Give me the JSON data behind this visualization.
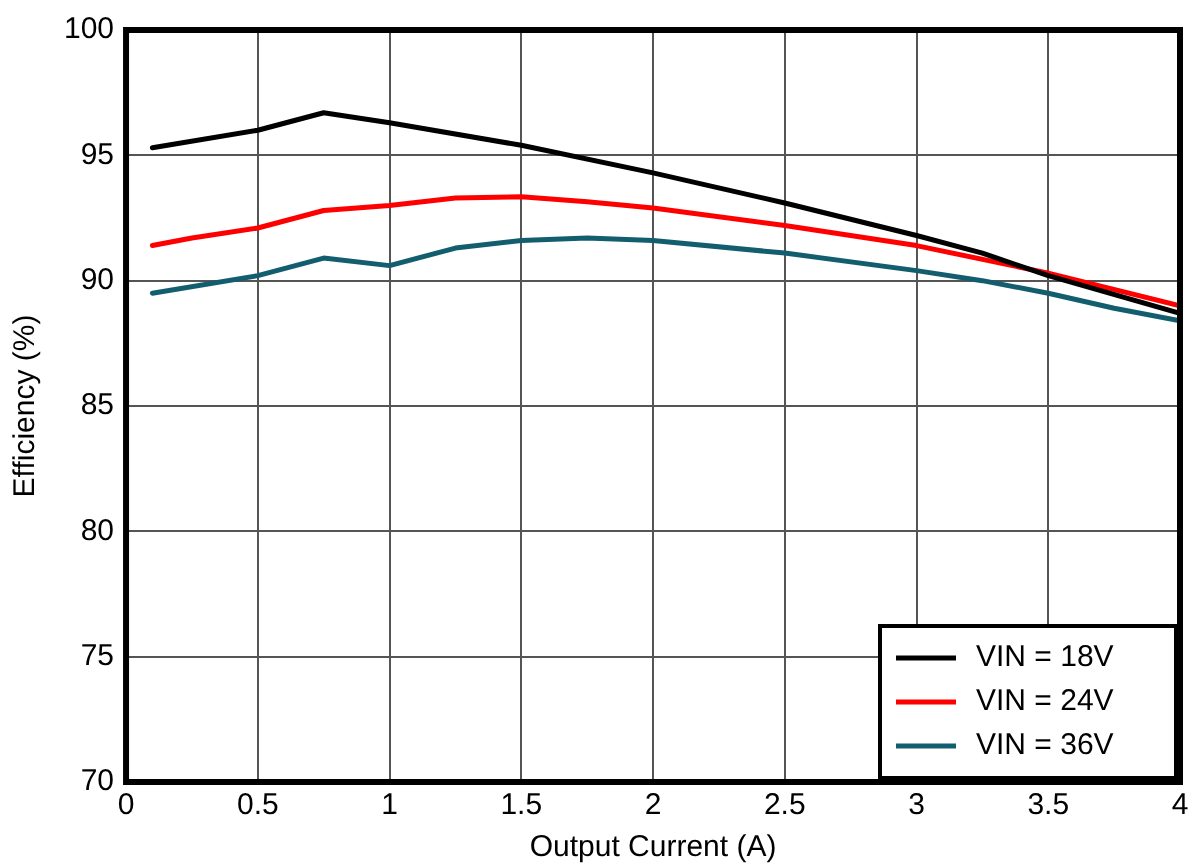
{
  "chart_data": {
    "type": "line",
    "xlabel": "Output Current (A)",
    "ylabel": "Efficiency (%)",
    "xlim": [
      0,
      4
    ],
    "xticks": [
      0,
      0.5,
      1,
      1.5,
      2,
      2.5,
      3,
      3.5,
      4
    ],
    "ylim": [
      70,
      100
    ],
    "yticks": [
      70,
      75,
      80,
      85,
      90,
      95,
      100
    ],
    "grid": true,
    "legend": "bottom right",
    "marker": "none",
    "line_style": "solid",
    "series": [
      {
        "name": "VIN = 18V",
        "color": "#000000",
        "x": [
          0.1,
          0.5,
          0.75,
          1,
          1.5,
          2,
          2.5,
          3,
          3.25,
          3.5,
          4
        ],
        "values": [
          95.3,
          96.0,
          96.7,
          96.3,
          95.4,
          94.3,
          93.1,
          91.8,
          91.1,
          90.2,
          88.7
        ]
      },
      {
        "name": "VIN = 24V",
        "color": "#ff0000",
        "x": [
          0.1,
          0.25,
          0.5,
          0.75,
          1,
          1.25,
          1.5,
          1.75,
          2,
          2.5,
          3,
          3.5,
          4
        ],
        "values": [
          91.4,
          91.7,
          92.1,
          92.8,
          93.0,
          93.3,
          93.35,
          93.15,
          92.9,
          92.2,
          91.4,
          90.3,
          89.0
        ]
      },
      {
        "name": "VIN = 36V",
        "color": "#135e6e",
        "x": [
          0.1,
          0.5,
          0.75,
          1,
          1.25,
          1.5,
          1.75,
          2,
          2.5,
          3,
          3.25,
          3.5,
          3.75,
          4
        ],
        "values": [
          89.5,
          90.2,
          90.9,
          90.6,
          91.3,
          91.6,
          91.7,
          91.6,
          91.1,
          90.4,
          90.0,
          89.5,
          88.9,
          88.4
        ]
      }
    ]
  }
}
